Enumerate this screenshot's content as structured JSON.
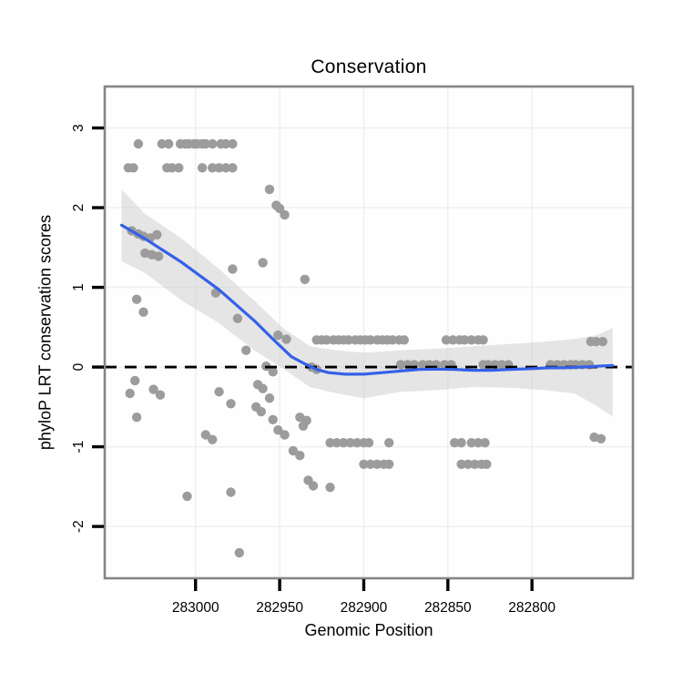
{
  "title": "Conservation",
  "chart_data": {
    "type": "scatter",
    "title": "Conservation",
    "xlabel": "Genomic Position",
    "ylabel": "phyloP LRT conservation scores",
    "x_axis_reversed": true,
    "x_ticks": [
      283000,
      282950,
      282900,
      282850,
      282800
    ],
    "x_tick_labels": [
      "283000",
      "282950",
      "282900",
      "282850",
      "282800"
    ],
    "y_ticks": [
      3,
      2,
      1,
      0,
      -1,
      -2
    ],
    "y_tick_labels": [
      "3",
      "2",
      "1",
      "0",
      "-1",
      "-2"
    ],
    "x_range_left_to_right": [
      283054,
      282740
    ],
    "y_range_bottom_to_top": [
      -2.65,
      3.52
    ],
    "grid": true,
    "zero_reference_line": {
      "y": 0,
      "style": "dashed",
      "color": "#000000"
    },
    "point_color": "#9C9C9C",
    "smooth_line_color": "#3560E8",
    "band_color": "#CFCFCF",
    "grid_color": "#EFEFEF",
    "border_color": "#858585",
    "points": [
      [
        283034,
        2.8
      ],
      [
        283020,
        2.8
      ],
      [
        283016,
        2.8
      ],
      [
        283009,
        2.8
      ],
      [
        283006,
        2.8
      ],
      [
        283004,
        2.8
      ],
      [
        283001,
        2.8
      ],
      [
        282999,
        2.8
      ],
      [
        282996,
        2.8
      ],
      [
        282994,
        2.8
      ],
      [
        282990,
        2.8
      ],
      [
        282985,
        2.8
      ],
      [
        282982,
        2.8
      ],
      [
        282978,
        2.8
      ],
      [
        283040,
        2.5
      ],
      [
        283037,
        2.5
      ],
      [
        283017,
        2.5
      ],
      [
        283014,
        2.5
      ],
      [
        283010,
        2.5
      ],
      [
        282996,
        2.5
      ],
      [
        282990,
        2.5
      ],
      [
        282986,
        2.5
      ],
      [
        282982,
        2.5
      ],
      [
        282978,
        2.5
      ],
      [
        282956,
        2.23
      ],
      [
        282952,
        2.03
      ],
      [
        282950,
        1.99
      ],
      [
        282947,
        1.91
      ],
      [
        283038,
        1.71
      ],
      [
        283034,
        1.67
      ],
      [
        283031,
        1.64
      ],
      [
        283027,
        1.62
      ],
      [
        283023,
        1.66
      ],
      [
        283030,
        1.43
      ],
      [
        283026,
        1.41
      ],
      [
        283022,
        1.39
      ],
      [
        283035,
        0.85
      ],
      [
        283031,
        0.69
      ],
      [
        283036,
        -0.17
      ],
      [
        283039,
        -0.33
      ],
      [
        283035,
        -0.63
      ],
      [
        283025,
        -0.28
      ],
      [
        283021,
        -0.35
      ],
      [
        283005,
        -1.62
      ],
      [
        282974,
        -2.33
      ],
      [
        282978,
        1.23
      ],
      [
        282988,
        0.93
      ],
      [
        282975,
        0.61
      ],
      [
        282960,
        1.31
      ],
      [
        282935,
        1.1
      ],
      [
        282970,
        0.21
      ],
      [
        282951,
        0.4
      ],
      [
        282946,
        0.35
      ],
      [
        282958,
        0.01
      ],
      [
        282954,
        -0.06
      ],
      [
        282963,
        -0.22
      ],
      [
        282960,
        -0.27
      ],
      [
        282956,
        -0.39
      ],
      [
        282964,
        -0.5
      ],
      [
        282961,
        -0.56
      ],
      [
        282954,
        -0.66
      ],
      [
        282951,
        -0.79
      ],
      [
        282947,
        -0.85
      ],
      [
        282942,
        -1.05
      ],
      [
        282938,
        -1.11
      ],
      [
        282933,
        -1.42
      ],
      [
        282930,
        -1.49
      ],
      [
        282938,
        -0.63
      ],
      [
        282934,
        -0.67
      ],
      [
        282936,
        -0.74
      ],
      [
        282931,
        0.0
      ],
      [
        282928,
        -0.03
      ],
      [
        282986,
        -0.31
      ],
      [
        282979,
        -0.46
      ],
      [
        282994,
        -0.85
      ],
      [
        282990,
        -0.91
      ],
      [
        282979,
        -1.57
      ],
      [
        282920,
        -1.51
      ],
      [
        282928,
        0.34
      ],
      [
        282925,
        0.34
      ],
      [
        282922,
        0.34
      ],
      [
        282918,
        0.34
      ],
      [
        282915,
        0.34
      ],
      [
        282912,
        0.34
      ],
      [
        282909,
        0.34
      ],
      [
        282905,
        0.34
      ],
      [
        282902,
        0.34
      ],
      [
        282899,
        0.34
      ],
      [
        282896,
        0.34
      ],
      [
        282892,
        0.34
      ],
      [
        282889,
        0.34
      ],
      [
        282886,
        0.34
      ],
      [
        282883,
        0.34
      ],
      [
        282879,
        0.34
      ],
      [
        282876,
        0.34
      ],
      [
        282851,
        0.34
      ],
      [
        282847,
        0.34
      ],
      [
        282843,
        0.34
      ],
      [
        282840,
        0.34
      ],
      [
        282836,
        0.34
      ],
      [
        282832,
        0.34
      ],
      [
        282829,
        0.34
      ],
      [
        282765,
        0.32
      ],
      [
        282762,
        0.32
      ],
      [
        282758,
        0.32
      ],
      [
        282878,
        0.03
      ],
      [
        282874,
        0.03
      ],
      [
        282870,
        0.03
      ],
      [
        282865,
        0.03
      ],
      [
        282861,
        0.03
      ],
      [
        282857,
        0.03
      ],
      [
        282852,
        0.03
      ],
      [
        282848,
        0.03
      ],
      [
        282829,
        0.03
      ],
      [
        282826,
        0.03
      ],
      [
        282822,
        0.03
      ],
      [
        282818,
        0.03
      ],
      [
        282814,
        0.03
      ],
      [
        282789,
        0.03
      ],
      [
        282785,
        0.03
      ],
      [
        282781,
        0.03
      ],
      [
        282777,
        0.03
      ],
      [
        282774,
        0.03
      ],
      [
        282770,
        0.03
      ],
      [
        282766,
        0.03
      ],
      [
        282920,
        -0.95
      ],
      [
        282916,
        -0.95
      ],
      [
        282912,
        -0.95
      ],
      [
        282908,
        -0.95
      ],
      [
        282904,
        -0.95
      ],
      [
        282900,
        -0.95
      ],
      [
        282897,
        -0.95
      ],
      [
        282885,
        -0.95
      ],
      [
        282846,
        -0.95
      ],
      [
        282842,
        -0.95
      ],
      [
        282836,
        -0.95
      ],
      [
        282832,
        -0.95
      ],
      [
        282828,
        -0.95
      ],
      [
        282763,
        -0.88
      ],
      [
        282759,
        -0.9
      ],
      [
        282900,
        -1.22
      ],
      [
        282896,
        -1.22
      ],
      [
        282892,
        -1.22
      ],
      [
        282888,
        -1.22
      ],
      [
        282885,
        -1.22
      ],
      [
        282842,
        -1.22
      ],
      [
        282838,
        -1.22
      ],
      [
        282834,
        -1.22
      ],
      [
        282830,
        -1.22
      ],
      [
        282827,
        -1.22
      ]
    ],
    "smooth_line": [
      [
        283044,
        1.78
      ],
      [
        283030,
        1.61
      ],
      [
        283008,
        1.31
      ],
      [
        282986,
        0.97
      ],
      [
        282965,
        0.58
      ],
      [
        282954,
        0.35
      ],
      [
        282943,
        0.13
      ],
      [
        282935,
        0.04
      ],
      [
        282928,
        -0.03
      ],
      [
        282921,
        -0.07
      ],
      [
        282911,
        -0.09
      ],
      [
        282900,
        -0.09
      ],
      [
        282889,
        -0.07
      ],
      [
        282878,
        -0.05
      ],
      [
        282867,
        -0.03
      ],
      [
        282857,
        -0.025
      ],
      [
        282846,
        -0.03
      ],
      [
        282835,
        -0.04
      ],
      [
        282824,
        -0.04
      ],
      [
        282813,
        -0.03
      ],
      [
        282800,
        -0.02
      ],
      [
        282790,
        -0.01
      ],
      [
        282781,
        -0.01
      ],
      [
        282770,
        0.0
      ],
      [
        282762,
        0.01
      ],
      [
        282752,
        0.02
      ]
    ],
    "confidence_band": [
      [
        283044,
        2.23,
        1.33
      ],
      [
        283030,
        1.92,
        1.18
      ],
      [
        283008,
        1.61,
        0.83
      ],
      [
        282986,
        1.23,
        0.55
      ],
      [
        282965,
        0.83,
        0.21
      ],
      [
        282948,
        0.49,
        -0.02
      ],
      [
        282932,
        0.26,
        -0.25
      ],
      [
        282916,
        0.21,
        -0.33
      ],
      [
        282900,
        0.18,
        -0.39
      ],
      [
        282878,
        0.21,
        -0.31
      ],
      [
        282857,
        0.23,
        -0.29
      ],
      [
        282835,
        0.26,
        -0.25
      ],
      [
        282813,
        0.29,
        -0.26
      ],
      [
        282792,
        0.32,
        -0.29
      ],
      [
        282775,
        0.35,
        -0.33
      ],
      [
        282762,
        0.4,
        -0.48
      ],
      [
        282752,
        0.49,
        -0.62
      ]
    ]
  }
}
